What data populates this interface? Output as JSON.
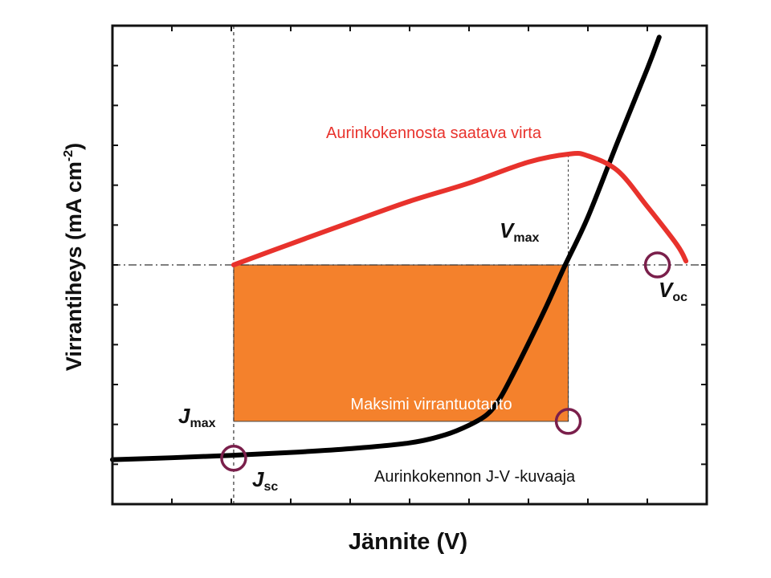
{
  "chart_data": {
    "type": "line",
    "xlabel": "Jännite (V)",
    "ylabel": "Virrantiheys (mA cm",
    "ylabel_sup": "-2",
    "ylabel_end": ")",
    "xlim": [
      0,
      1
    ],
    "ylim": [
      0,
      1
    ],
    "grid": false,
    "colors": {
      "jv_curve": "#000000",
      "power_curve": "#e8322c",
      "power_rect": "#f4812c",
      "markers": "#7a1f4b"
    },
    "series": [
      {
        "key": "jv",
        "points": [
          [
            0.0,
            0.093
          ],
          [
            0.1,
            0.097
          ],
          [
            0.2,
            0.102
          ],
          [
            0.3,
            0.108
          ],
          [
            0.4,
            0.116
          ],
          [
            0.5,
            0.128
          ],
          [
            0.56,
            0.145
          ],
          [
            0.6,
            0.165
          ],
          [
            0.63,
            0.187
          ],
          [
            0.65,
            0.217
          ],
          [
            0.67,
            0.262
          ],
          [
            0.7,
            0.336
          ],
          [
            0.73,
            0.413
          ],
          [
            0.76,
            0.495
          ],
          [
            0.8,
            0.6
          ],
          [
            0.85,
            0.757
          ],
          [
            0.9,
            0.91
          ],
          [
            0.92,
            0.976
          ]
        ]
      },
      {
        "key": "power",
        "points": [
          [
            0.204,
            0.5
          ],
          [
            0.3,
            0.544
          ],
          [
            0.4,
            0.589
          ],
          [
            0.5,
            0.633
          ],
          [
            0.6,
            0.671
          ],
          [
            0.7,
            0.715
          ],
          [
            0.77,
            0.732
          ],
          [
            0.8,
            0.728
          ],
          [
            0.85,
            0.697
          ],
          [
            0.9,
            0.622
          ],
          [
            0.95,
            0.542
          ],
          [
            0.965,
            0.508
          ]
        ]
      }
    ],
    "reference_lines": {
      "x_jsc": 0.204,
      "x_vmax": 0.767,
      "y_vmax": 0.5,
      "y_jmax": 0.173
    },
    "power_rect": {
      "x0": 0.204,
      "x1": 0.767,
      "y0": 0.173,
      "y1": 0.5
    },
    "markers": [
      {
        "key": "jsc",
        "x": 0.204,
        "y": 0.096
      },
      {
        "key": "mpp",
        "x": 0.767,
        "y": 0.173
      },
      {
        "key": "voc",
        "x": 0.917,
        "y": 0.5
      }
    ],
    "annotations": {
      "power_curve": "Aurinkokennosta saatava virta",
      "max_power": "Maksimi virrantuotanto",
      "jv_curve": "Aurinkokennon J-V -kuvaaja"
    },
    "point_labels": {
      "vmax": {
        "main": "V",
        "sub": "max"
      },
      "voc": {
        "main": "V",
        "sub": "oc"
      },
      "jmax": {
        "main": "J",
        "sub": "max"
      },
      "jsc": {
        "main": "J",
        "sub": "sc"
      }
    }
  }
}
